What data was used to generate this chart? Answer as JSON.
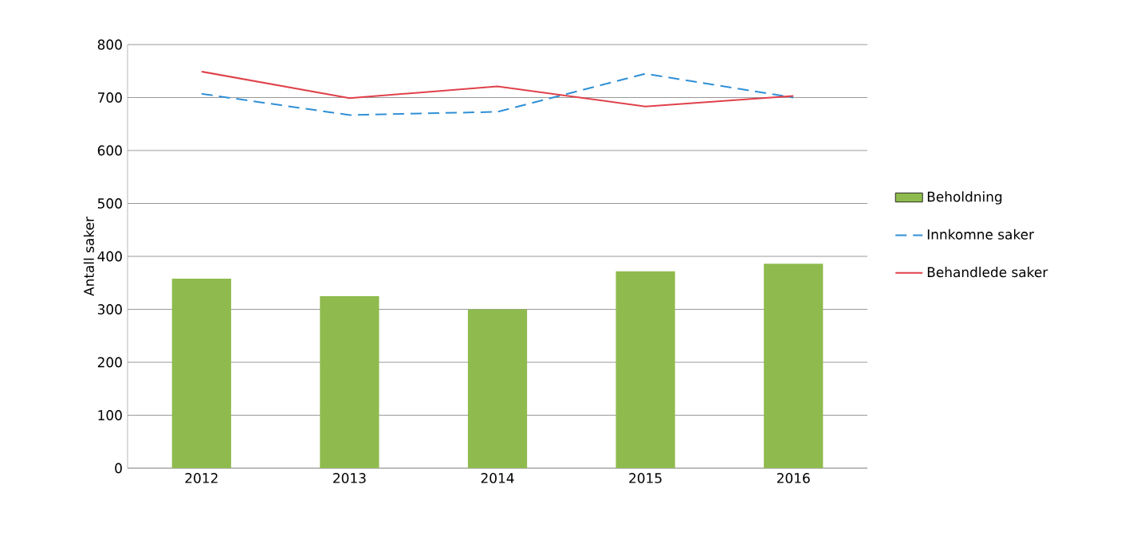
{
  "chart_data": {
    "type": "bar",
    "ylabel": "Antall saker",
    "categories": [
      "2012",
      "2013",
      "2014",
      "2015",
      "2016"
    ],
    "series": [
      {
        "name": "Beholdning",
        "color": "#8fbb4e",
        "values": [
          358,
          325,
          300,
          372,
          386
        ]
      },
      {
        "name": "Innkomne saker",
        "type": "line",
        "line_style": "dashed",
        "color": "#2f8fd6",
        "values": [
          707,
          667,
          673,
          745,
          700
        ]
      },
      {
        "name": "Behandlede saker",
        "type": "line",
        "line_style": "solid",
        "color": "#e0414a",
        "values": [
          749,
          699,
          721,
          683,
          703
        ]
      }
    ],
    "ylim": [
      0,
      800
    ],
    "yticks": [
      0,
      100,
      200,
      300,
      400,
      500,
      600,
      700,
      800
    ],
    "grid": "y",
    "legend": "right"
  }
}
